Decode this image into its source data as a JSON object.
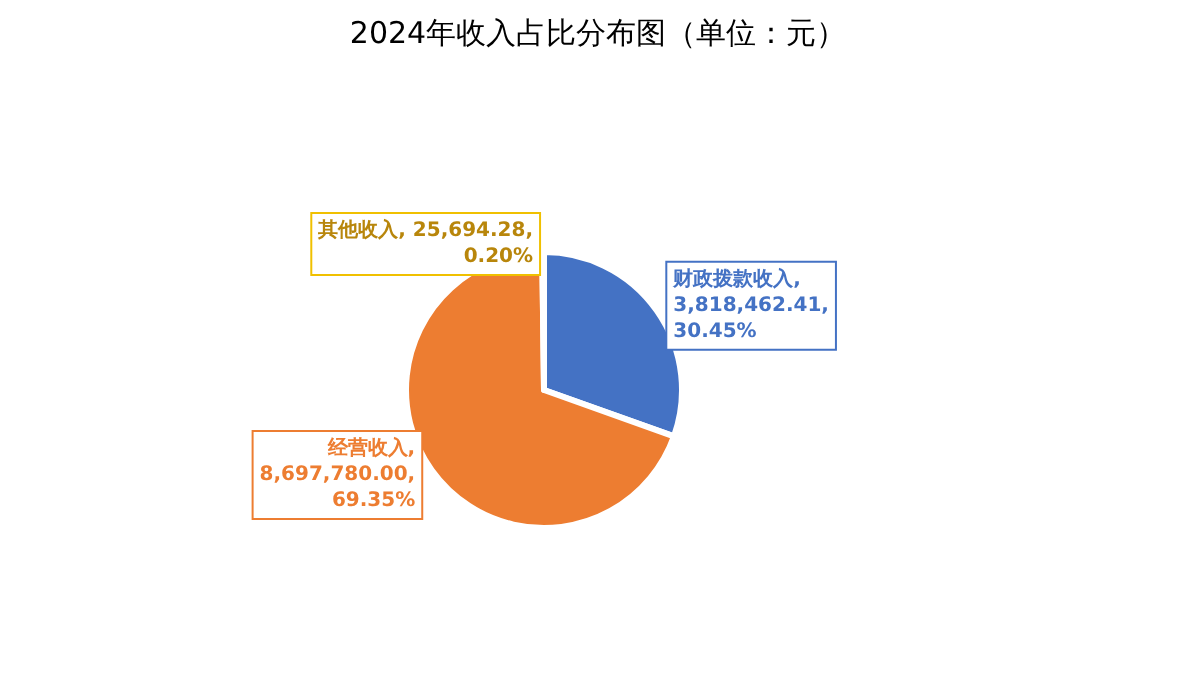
{
  "chart_data": {
    "type": "pie",
    "title": "2024年收入占比分布图（单位：元）",
    "categories": [
      "财政拨款收入",
      "经营收入",
      "其他收入"
    ],
    "values": [
      3818462.41,
      8697780.0,
      25694.28
    ],
    "colors": [
      "#4472c4",
      "#ed7d31",
      "#a5a5a5"
    ],
    "value_labels": [
      ",\n3,818,462.41,\n30.45%",
      ",\n8,697,780.00,\n69.35%",
      ", 25,694.28,\n0.20%"
    ],
    "legend": false
  }
}
